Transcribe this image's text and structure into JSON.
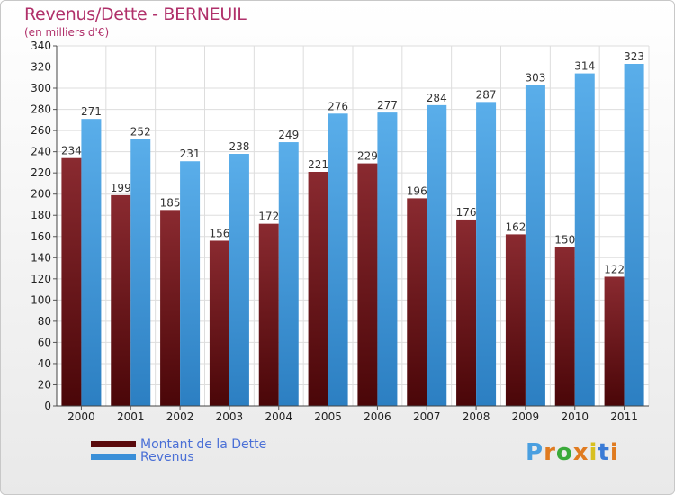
{
  "title": "Revenus/Dette - BERNEUIL",
  "subtitle": "(en milliers d'€)",
  "colors": {
    "dette": "#7a1f25",
    "revenus": "#4a9fe0",
    "title": "#b0306a"
  },
  "legend": {
    "dette": "Montant de la Dette",
    "revenus": "Revenus"
  },
  "logo": {
    "letters": [
      "P",
      "r",
      "o",
      "x",
      "i",
      "t",
      "i"
    ],
    "colors": [
      "#4a9fe0",
      "#e07b20",
      "#3aaa3a",
      "#e07b20",
      "#d8c020",
      "#3a7bd6",
      "#e07b20"
    ]
  },
  "chart_data": {
    "type": "bar",
    "categories": [
      "2000",
      "2001",
      "2002",
      "2003",
      "2004",
      "2005",
      "2006",
      "2007",
      "2008",
      "2009",
      "2010",
      "2011"
    ],
    "series": [
      {
        "name": "Montant de la Dette",
        "values": [
          234,
          199,
          185,
          156,
          172,
          221,
          229,
          196,
          176,
          162,
          150,
          122
        ]
      },
      {
        "name": "Revenus",
        "values": [
          271,
          252,
          231,
          238,
          249,
          276,
          277,
          284,
          287,
          303,
          314,
          323
        ]
      }
    ],
    "ylim": [
      0,
      340
    ],
    "yticks": [
      0,
      20,
      40,
      60,
      80,
      100,
      120,
      140,
      160,
      180,
      200,
      220,
      240,
      260,
      280,
      300,
      320,
      340
    ],
    "grid": true,
    "legend_position": "bottom-left"
  }
}
